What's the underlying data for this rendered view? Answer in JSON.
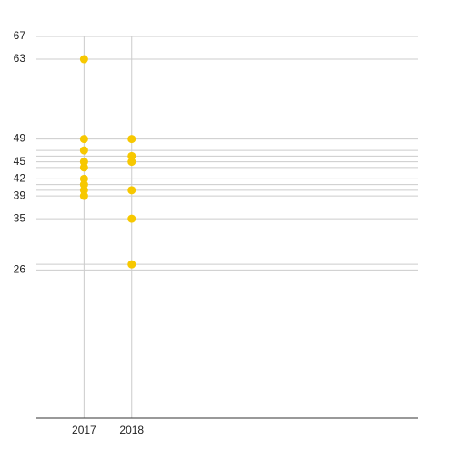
{
  "chart_data": {
    "type": "scatter",
    "x": [
      2017,
      2017,
      2017,
      2017,
      2017,
      2017,
      2017,
      2017,
      2017,
      2018,
      2018,
      2018,
      2018,
      2018,
      2018
    ],
    "values": [
      63,
      49,
      47,
      45,
      44,
      42,
      41,
      40,
      39,
      49,
      46,
      45,
      40,
      35,
      27
    ],
    "color": "#f7c800",
    "xlim": [
      2016,
      2024
    ],
    "xticks": [
      2017,
      2018
    ],
    "ylim": [
      0,
      67
    ],
    "yticks": [
      26,
      27,
      35,
      39,
      40,
      41,
      42,
      44,
      45,
      46,
      47,
      49,
      63,
      67
    ],
    "grid": true
  }
}
